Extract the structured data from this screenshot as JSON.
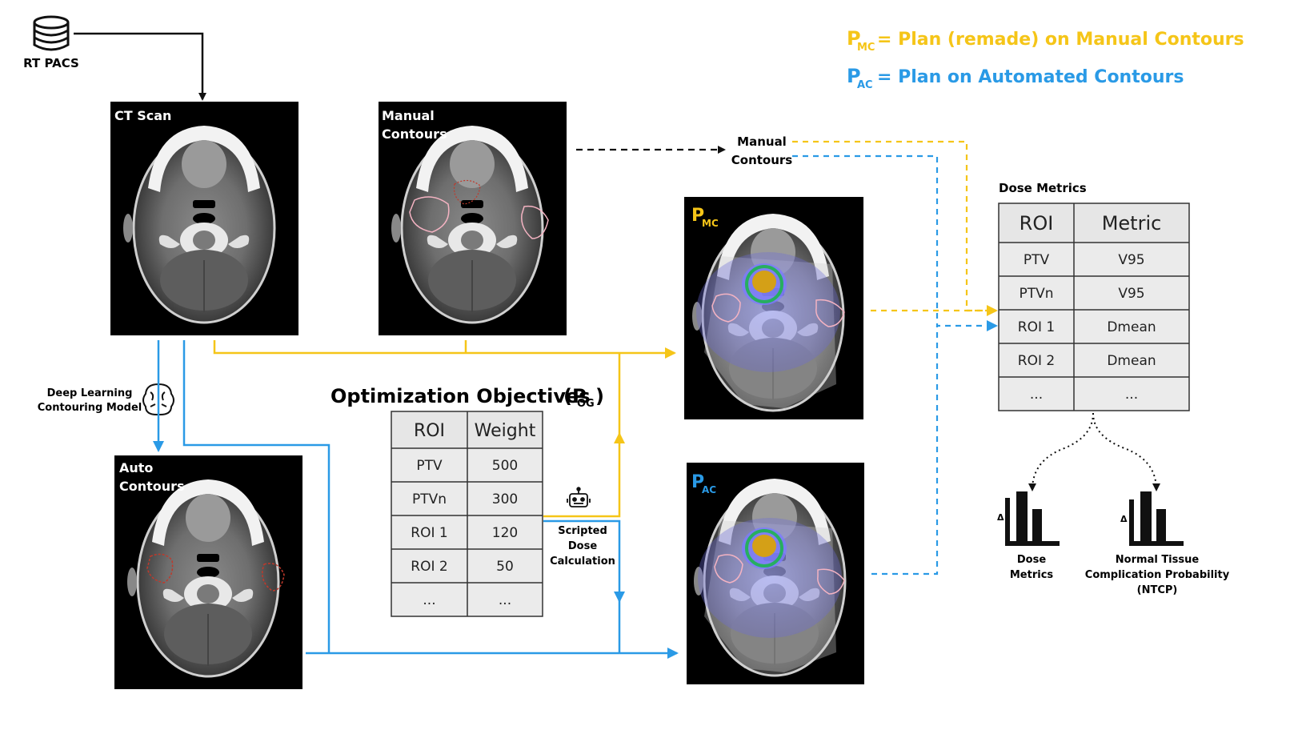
{
  "colors": {
    "yellow": "#F5C518",
    "blue": "#2A9AE6",
    "black": "#111111",
    "panel_bg": "#000000",
    "table_header_bg": "#E6E6E6",
    "table_cell_bg": "#EBEBEB",
    "table_border": "#333333"
  },
  "legend": {
    "mc_symbol": "P",
    "mc_sub": "MC",
    "mc_text": "= Plan (remade) on Manual Contours",
    "ac_symbol": "P",
    "ac_sub": "AC",
    "ac_text": "= Plan on Automated Contours"
  },
  "source": {
    "icon": "database-icon",
    "label": "RT PACS"
  },
  "panels": {
    "ct_scan": "CT Scan",
    "manual_contours_line1": "Manual",
    "manual_contours_line2": "Contours",
    "auto_contours_line1": "Auto",
    "auto_contours_line2": "Contours",
    "pmc_symbol": "P",
    "pmc_sub": "MC",
    "pac_symbol": "P",
    "pac_sub": "AC"
  },
  "labels": {
    "deep_learning_line1": "Deep Learning",
    "deep_learning_line2": "Contouring Model",
    "deep_learning_icon": "brain-icon",
    "scripted_line1": "Scripted",
    "scripted_line2": "Dose",
    "scripted_line3": "Calculation",
    "scripted_icon": "robot-icon",
    "manual_contours_line1": "Manual",
    "manual_contours_line2": "Contours"
  },
  "optimization": {
    "title": "Optimization Objectives",
    "symbol_open": "(P",
    "symbol_sub": "OG",
    "symbol_close": ")",
    "headers": [
      "ROI",
      "Weight"
    ],
    "rows": [
      [
        "PTV",
        "500"
      ],
      [
        "PTVn",
        "300"
      ],
      [
        "ROI 1",
        "120"
      ],
      [
        "ROI 2",
        "50"
      ],
      [
        "...",
        "..."
      ]
    ]
  },
  "dose_metrics": {
    "title": "Dose Metrics",
    "headers": [
      "ROI",
      "Metric"
    ],
    "rows": [
      [
        "PTV",
        "V95"
      ],
      [
        "PTVn",
        "V95"
      ],
      [
        "ROI 1",
        "Dmean"
      ],
      [
        "ROI 2",
        "Dmean"
      ],
      [
        "...",
        "..."
      ]
    ]
  },
  "outputs": {
    "delta": "Δ",
    "dose_metrics_line1": "Dose",
    "dose_metrics_line2": "Metrics",
    "ntcp_line1": "Normal Tissue",
    "ntcp_line2": "Complication Probability",
    "ntcp_line3": "(NTCP)",
    "chart_icon": "bar-chart-icon"
  }
}
